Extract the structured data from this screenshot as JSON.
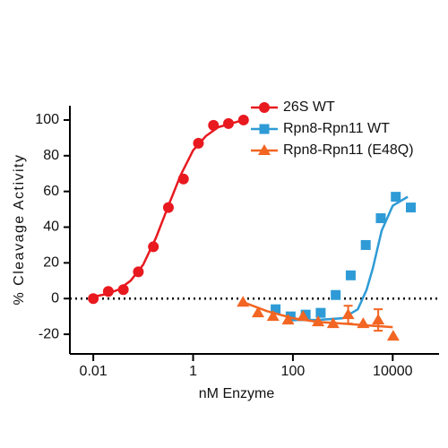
{
  "chart_data": {
    "type": "scatter",
    "x_label": "nM  Enzyme",
    "y_label": "% Cleavage Activity",
    "x_log": true,
    "xlim": [
      0.003,
      100000
    ],
    "xticks": [
      0.01,
      1,
      100,
      10000
    ],
    "ylim": [
      -31,
      108
    ],
    "yticks": [
      -20,
      0,
      20,
      40,
      60,
      80,
      100
    ],
    "zero_line": true,
    "legend": "top-right",
    "series": [
      {
        "name": "26S WT",
        "color": "#e8191f",
        "marker": "circle",
        "x": [
          0.01,
          0.02,
          0.04,
          0.08,
          0.16,
          0.32,
          0.64,
          1.28,
          2.56,
          5.12,
          10.24
        ],
        "values": [
          0,
          4,
          5,
          15,
          29,
          51,
          67,
          87,
          97,
          98,
          100
        ],
        "curve": {
          "x": [
            0.01,
            0.018,
            0.032,
            0.056,
            0.1,
            0.18,
            0.32,
            0.56,
            1,
            1.8,
            3.2,
            10.24
          ],
          "values": [
            1,
            2.5,
            5,
            10,
            19,
            34,
            52,
            69,
            83,
            91,
            96,
            100
          ]
        }
      },
      {
        "name": "Rpn8-Rpn11 WT",
        "color": "#2e9bd6",
        "marker": "square",
        "x": [
          45,
          90,
          180,
          360,
          720,
          1440,
          2880,
          5760,
          11520,
          23040
        ],
        "values": [
          -6,
          -10,
          -9,
          -8,
          2,
          13,
          30,
          45,
          57,
          51
        ],
        "curve": {
          "x": [
            90,
            300,
            1000,
            2000,
            3000,
            4000,
            6000,
            10000,
            20000
          ],
          "values": [
            -12,
            -12,
            -11,
            -6,
            5,
            17,
            38,
            52,
            57
          ]
        }
      },
      {
        "name": "Rpn8-Rpn11 (E48Q)",
        "color": "#f26522",
        "marker": "triangle",
        "x": [
          10,
          20,
          40,
          80,
          160,
          320,
          640,
          1280,
          2560,
          5120,
          10240
        ],
        "values": [
          -2,
          -8,
          -10,
          -12,
          -10,
          -13,
          -14,
          -9,
          -14,
          -12,
          -21
        ],
        "errors": [
          null,
          null,
          null,
          null,
          null,
          null,
          null,
          5,
          null,
          6,
          null
        ],
        "curve": {
          "x": [
            10,
            30,
            100,
            300,
            1000,
            3000,
            10000
          ],
          "values": [
            -2,
            -7,
            -11,
            -13,
            -14,
            -15,
            -16
          ]
        }
      }
    ]
  }
}
